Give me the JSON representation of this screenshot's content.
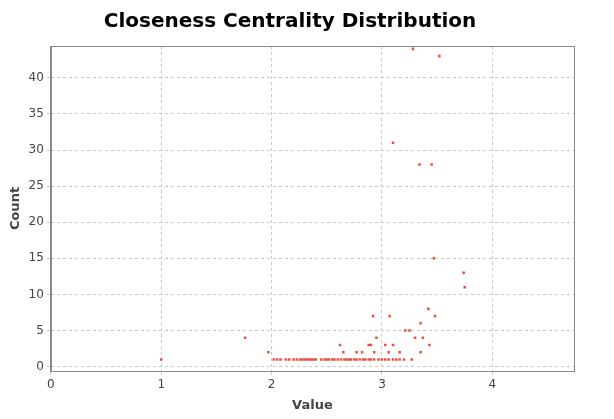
{
  "chart_data": {
    "type": "scatter",
    "title": "Closeness Centrality Distribution",
    "x_label": "Value",
    "y_label": "Count",
    "x": [
      1.0,
      1.76,
      1.97,
      2.02,
      2.05,
      2.08,
      2.13,
      2.16,
      2.2,
      2.23,
      2.26,
      2.28,
      2.3,
      2.32,
      2.34,
      2.36,
      2.38,
      2.4,
      2.45,
      2.48,
      2.5,
      2.52,
      2.55,
      2.57,
      2.6,
      2.63,
      2.66,
      2.68,
      2.7,
      2.72,
      2.75,
      2.77,
      2.8,
      2.83,
      2.85,
      2.88,
      2.9,
      2.93,
      2.97,
      3.0,
      3.03,
      3.06,
      3.1,
      3.13,
      3.16,
      3.2,
      3.27,
      2.65,
      2.77,
      2.82,
      2.93,
      3.06,
      3.16,
      3.35,
      2.62,
      2.88,
      2.9,
      3.03,
      3.1,
      3.43,
      2.92,
      2.95,
      3.07,
      3.1,
      3.21,
      3.25,
      3.28,
      3.3,
      3.34,
      3.35,
      3.37,
      3.42,
      3.45,
      3.47,
      3.48,
      3.52,
      3.74,
      3.75
    ],
    "values": [
      1,
      4,
      2,
      1,
      1,
      1,
      1,
      1,
      1,
      1,
      1,
      1,
      1,
      1,
      1,
      1,
      1,
      1,
      1,
      1,
      1,
      1,
      1,
      1,
      1,
      1,
      1,
      1,
      1,
      1,
      1,
      1,
      1,
      1,
      1,
      1,
      1,
      1,
      1,
      1,
      1,
      1,
      1,
      1,
      1,
      1,
      1,
      2,
      2,
      2,
      2,
      2,
      2,
      2,
      3,
      3,
      3,
      3,
      3,
      3,
      7,
      4,
      7,
      31,
      5,
      5,
      44,
      4,
      28,
      6,
      4,
      8,
      28,
      15,
      7,
      43,
      13,
      11
    ],
    "color": "#e8533f",
    "marker": "square",
    "xlim": [
      0,
      4.74
    ],
    "xticks": [
      0,
      1,
      2,
      3,
      4
    ],
    "ylim": [
      -0.6,
      44.4
    ],
    "yticks": [
      0,
      5,
      10,
      15,
      20,
      25,
      30,
      35,
      40
    ],
    "grid": true
  }
}
